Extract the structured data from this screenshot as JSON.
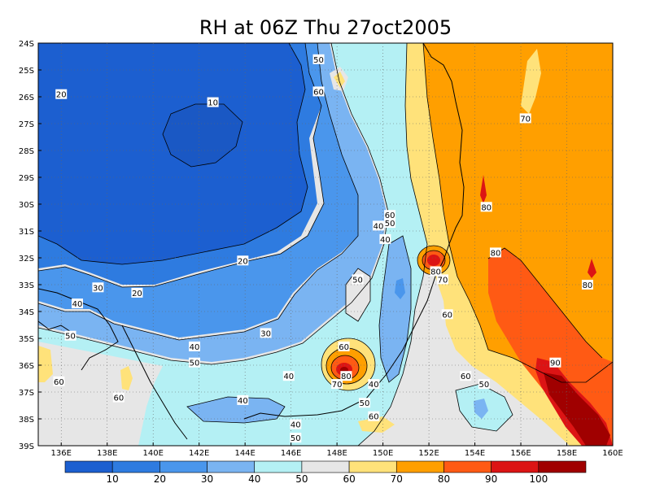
{
  "chart_data": {
    "type": "contour_map",
    "title": "RH at 06Z Thu 27oct2005",
    "x_ticks": [
      "136E",
      "138E",
      "140E",
      "142E",
      "144E",
      "146E",
      "148E",
      "150E",
      "152E",
      "154E",
      "156E",
      "158E",
      "160E"
    ],
    "y_ticks": [
      "24S",
      "25S",
      "26S",
      "27S",
      "28S",
      "29S",
      "30S",
      "31S",
      "32S",
      "33S",
      "34S",
      "35S",
      "36S",
      "37S",
      "38S",
      "39S"
    ],
    "lon_range": [
      135,
      160
    ],
    "lat_range": [
      -39,
      -24
    ],
    "grid": true,
    "colorbar": {
      "levels": [
        "10",
        "20",
        "30",
        "40",
        "50",
        "60",
        "70",
        "80",
        "90",
        "100"
      ],
      "colors": [
        "#1c5fd0",
        "#2e7be0",
        "#4a96ec",
        "#7ab4f2",
        "#b4f0f4",
        "#e6e6e6",
        "#ffe27a",
        "#ff9f00",
        "#ff5a14",
        "#dc1414",
        "#a00000"
      ]
    },
    "contour_labels": [
      {
        "text": "20",
        "lon": 136.0,
        "lat": -25.9
      },
      {
        "text": "10",
        "lon": 142.6,
        "lat": -26.2
      },
      {
        "text": "50",
        "lon": 147.2,
        "lat": -24.6
      },
      {
        "text": "60",
        "lon": 147.2,
        "lat": -25.8
      },
      {
        "text": "70",
        "lon": 156.2,
        "lat": -26.8
      },
      {
        "text": "60",
        "lon": 150.3,
        "lat": -30.4
      },
      {
        "text": "50",
        "lon": 150.3,
        "lat": -30.7
      },
      {
        "text": "40",
        "lon": 149.8,
        "lat": -30.8
      },
      {
        "text": "40",
        "lon": 150.1,
        "lat": -31.3
      },
      {
        "text": "80",
        "lon": 154.5,
        "lat": -30.1
      },
      {
        "text": "80",
        "lon": 154.9,
        "lat": -31.8
      },
      {
        "text": "20",
        "lon": 143.9,
        "lat": -32.1
      },
      {
        "text": "80",
        "lon": 152.3,
        "lat": -32.5
      },
      {
        "text": "70",
        "lon": 152.6,
        "lat": -32.8
      },
      {
        "text": "50",
        "lon": 148.9,
        "lat": -32.8
      },
      {
        "text": "30",
        "lon": 137.6,
        "lat": -33.1
      },
      {
        "text": "20",
        "lon": 139.3,
        "lat": -33.3
      },
      {
        "text": "80",
        "lon": 158.9,
        "lat": -33.0
      },
      {
        "text": "40",
        "lon": 136.7,
        "lat": -33.7
      },
      {
        "text": "60",
        "lon": 152.8,
        "lat": -34.1
      },
      {
        "text": "30",
        "lon": 144.9,
        "lat": -34.8
      },
      {
        "text": "50",
        "lon": 136.4,
        "lat": -34.9
      },
      {
        "text": "40",
        "lon": 141.8,
        "lat": -35.3
      },
      {
        "text": "60",
        "lon": 148.3,
        "lat": -35.3
      },
      {
        "text": "50",
        "lon": 141.8,
        "lat": -35.9
      },
      {
        "text": "90",
        "lon": 157.5,
        "lat": -35.9
      },
      {
        "text": "80",
        "lon": 148.4,
        "lat": -36.4
      },
      {
        "text": "40",
        "lon": 145.9,
        "lat": -36.4
      },
      {
        "text": "60",
        "lon": 153.6,
        "lat": -36.4
      },
      {
        "text": "50",
        "lon": 154.4,
        "lat": -36.7
      },
      {
        "text": "70",
        "lon": 148.0,
        "lat": -36.7
      },
      {
        "text": "40",
        "lon": 149.6,
        "lat": -36.7
      },
      {
        "text": "60",
        "lon": 135.9,
        "lat": -36.6
      },
      {
        "text": "60",
        "lon": 138.5,
        "lat": -37.2
      },
      {
        "text": "40",
        "lon": 143.9,
        "lat": -37.3
      },
      {
        "text": "50",
        "lon": 149.2,
        "lat": -37.4
      },
      {
        "text": "60",
        "lon": 149.6,
        "lat": -37.9
      },
      {
        "text": "40",
        "lon": 146.2,
        "lat": -38.2
      },
      {
        "text": "50",
        "lon": 146.2,
        "lat": -38.7
      }
    ]
  }
}
